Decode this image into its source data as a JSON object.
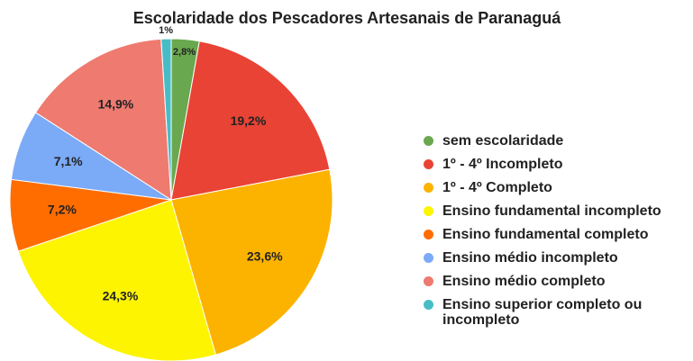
{
  "chart_data": {
    "type": "pie",
    "title": "Escolaridade dos Pescadores Artesanais de Paranaguá",
    "categories": [
      "sem escolaridade",
      "1º - 4º Incompleto",
      "1º - 4º Completo",
      "Ensino fundamental incompleto",
      "Ensino fundamental completo",
      "Ensino médio incompleto",
      "Ensino médio completo",
      "Ensino superior completo ou incompleto"
    ],
    "values": [
      2.8,
      19.2,
      23.6,
      24.3,
      7.2,
      7.1,
      14.9,
      1
    ],
    "value_labels": [
      "2,8%",
      "19,2%",
      "23,6%",
      "24,3%",
      "7,2%",
      "7,1%",
      "14,9%",
      "1%"
    ],
    "colors": [
      "#6aa84f",
      "#e94335",
      "#fbb300",
      "#fcf400",
      "#ff6d01",
      "#7baaf6",
      "#ee7a70",
      "#46bdc6"
    ],
    "legend": "right"
  }
}
